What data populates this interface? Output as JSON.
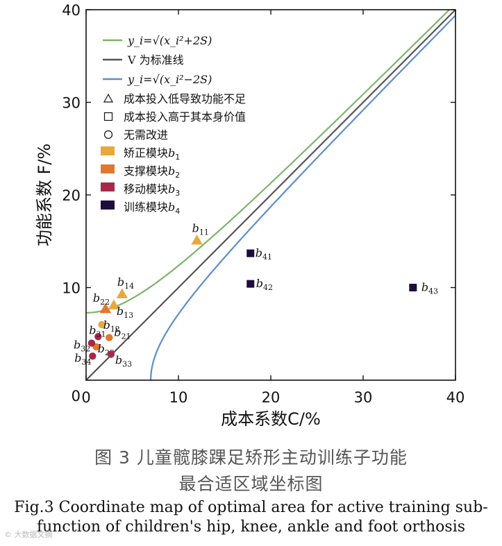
{
  "chart_data": {
    "type": "scatter",
    "xlabel": "成本系数C/%",
    "ylabel": "功能系数 F/%",
    "xlim": [
      0,
      40
    ],
    "ylim": [
      0,
      40
    ],
    "x_ticks": [
      "0",
      "10",
      "20",
      "30",
      "40"
    ],
    "y_ticks": [
      "10",
      "20",
      "30",
      "40"
    ],
    "grid": false,
    "legend_position": "top-left",
    "curves": [
      {
        "legend": "y_i=√(x_i²+2S)",
        "kind": "upper",
        "color": "#7cb46a"
      },
      {
        "legend": "V 为标准线",
        "kind": "standard",
        "color": "#555555"
      },
      {
        "legend": "y_i=√(x_i²−2S)",
        "kind": "lower",
        "color": "#5b8dc8"
      }
    ],
    "shape_legend": [
      {
        "marker": "triangle",
        "label": "成本投入低导致功能不足"
      },
      {
        "marker": "square",
        "label": "成本投入高于其本身价值"
      },
      {
        "marker": "circle",
        "label": "无需改进"
      }
    ],
    "modules": [
      {
        "key": "b1",
        "label": "矫正模块",
        "sub": "1",
        "color": "#e8a93c"
      },
      {
        "key": "b2",
        "label": "支撑模块",
        "sub": "2",
        "color": "#e07830"
      },
      {
        "key": "b3",
        "label": "移动模块",
        "sub": "3",
        "color": "#a8284a"
      },
      {
        "key": "b4",
        "label": "训练模块",
        "sub": "4",
        "color": "#1e0b3e"
      }
    ],
    "points": [
      {
        "sub": "11",
        "module": "b1",
        "marker": "triangle",
        "x": 12.0,
        "y": 15.1
      },
      {
        "sub": "12",
        "module": "b1",
        "marker": "circle",
        "x": 1.7,
        "y": 6.0
      },
      {
        "sub": "13",
        "module": "b1",
        "marker": "triangle",
        "x": 3.0,
        "y": 8.1
      },
      {
        "sub": "14",
        "module": "b1",
        "marker": "triangle",
        "x": 3.9,
        "y": 9.3
      },
      {
        "sub": "21",
        "module": "b2",
        "marker": "circle",
        "x": 2.5,
        "y": 4.6
      },
      {
        "sub": "22",
        "module": "b2",
        "marker": "triangle",
        "x": 2.1,
        "y": 7.7
      },
      {
        "sub": "23",
        "module": "b2",
        "marker": "circle",
        "x": 1.1,
        "y": 3.6
      },
      {
        "sub": "31",
        "module": "b3",
        "marker": "circle",
        "x": 1.3,
        "y": 4.7
      },
      {
        "sub": "32",
        "module": "b3",
        "marker": "circle",
        "x": 0.6,
        "y": 4.0
      },
      {
        "sub": "33",
        "module": "b3",
        "marker": "circle",
        "x": 2.7,
        "y": 2.8
      },
      {
        "sub": "34",
        "module": "b3",
        "marker": "circle",
        "x": 0.7,
        "y": 2.6
      },
      {
        "sub": "41",
        "module": "b4",
        "marker": "square",
        "x": 17.8,
        "y": 13.7
      },
      {
        "sub": "42",
        "module": "b4",
        "marker": "square",
        "x": 17.8,
        "y": 10.4
      },
      {
        "sub": "43",
        "module": "b4",
        "marker": "square",
        "x": 35.4,
        "y": 10.0
      }
    ],
    "curve_param_S": 26.5,
    "lower_curve_start_x": 7.0
  },
  "caption": {
    "cn_line1": "图 3    儿童髋膝踝足矫形主动训练子功能",
    "cn_line2": "最合适区域坐标图",
    "en_line1": "Fig.3 Coordinate map of optimal area for active training sub-",
    "en_line2": "function of children's hip, knee, ankle and foot orthosis"
  },
  "watermark": "©  大数据文摘"
}
